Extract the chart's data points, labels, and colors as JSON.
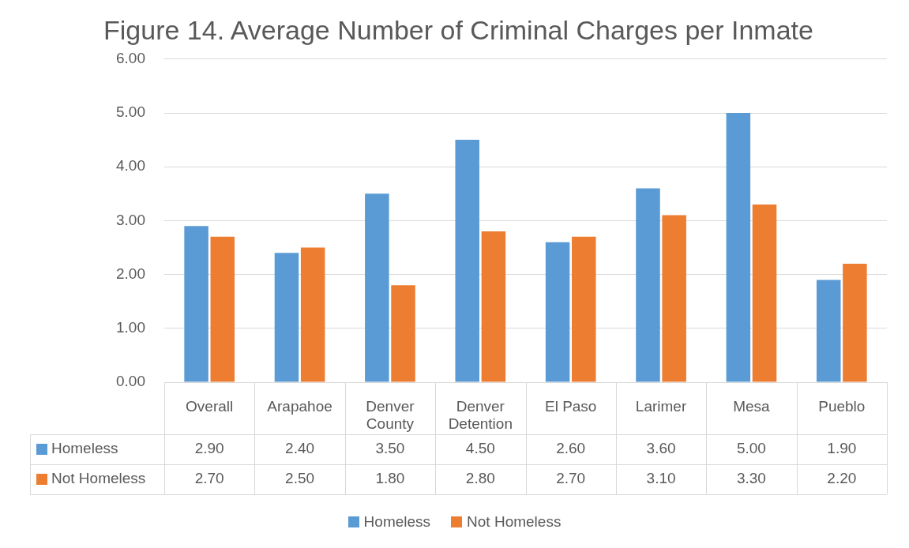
{
  "chart_data": {
    "type": "bar",
    "title": "Figure 14. Average Number of Criminal Charges per Inmate",
    "categories": [
      "Overall",
      "Arapahoe",
      "Denver County",
      "Denver Detention",
      "El Paso",
      "Larimer",
      "Mesa",
      "Pueblo"
    ],
    "series": [
      {
        "name": "Homeless",
        "color": "#5b9bd5",
        "values": [
          2.9,
          2.4,
          3.5,
          4.5,
          2.6,
          3.6,
          5.0,
          1.9
        ],
        "value_labels": [
          "2.90",
          "2.40",
          "3.50",
          "4.50",
          "2.60",
          "3.60",
          "5.00",
          "1.90"
        ]
      },
      {
        "name": "Not Homeless",
        "color": "#ed7d31",
        "values": [
          2.7,
          2.5,
          1.8,
          2.8,
          2.7,
          3.1,
          3.3,
          2.2
        ],
        "value_labels": [
          "2.70",
          "2.50",
          "1.80",
          "2.80",
          "2.70",
          "3.10",
          "3.30",
          "2.20"
        ]
      }
    ],
    "ylim": [
      0,
      6
    ],
    "yticks": [
      {
        "value": 0,
        "label": "0.00"
      },
      {
        "value": 1,
        "label": "1.00"
      },
      {
        "value": 2,
        "label": "2.00"
      },
      {
        "value": 3,
        "label": "3.00"
      },
      {
        "value": 4,
        "label": "4.00"
      },
      {
        "value": 5,
        "label": "5.00"
      },
      {
        "value": 6,
        "label": "6.00"
      }
    ],
    "grid": "y",
    "legend": "bottom"
  }
}
